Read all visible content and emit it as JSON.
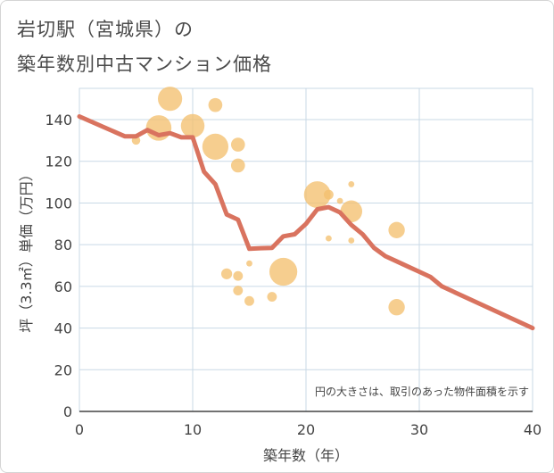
{
  "title": {
    "line1": "岩切駅（宮城県）の",
    "line2": "築年数別中古マンション価格"
  },
  "colors": {
    "line": "#d9735f",
    "bubble": "#f3c070",
    "grid": "#c9d9e6",
    "axis": "#444444"
  },
  "chart_data": {
    "type": "scatter",
    "xlabel": "築年数（年）",
    "ylabel": "坪（3.3㎡）単価（万円）",
    "xlim": [
      0,
      40
    ],
    "ylim": [
      0,
      155
    ],
    "xticks": [
      "0",
      "10",
      "20",
      "30",
      "40"
    ],
    "yticks": [
      "0",
      "20",
      "40",
      "60",
      "80",
      "100",
      "120",
      "140"
    ],
    "grid": true,
    "note": "円の大きさは、取引のあった物件面積を示す",
    "bubbles": [
      {
        "x": 5,
        "y": 130,
        "size": 1.4
      },
      {
        "x": 7,
        "y": 136,
        "size": 4.2
      },
      {
        "x": 8,
        "y": 150,
        "size": 4.0
      },
      {
        "x": 10,
        "y": 137,
        "size": 3.9
      },
      {
        "x": 12,
        "y": 147,
        "size": 2.3
      },
      {
        "x": 12,
        "y": 127,
        "size": 4.3
      },
      {
        "x": 14,
        "y": 128,
        "size": 2.3
      },
      {
        "x": 14,
        "y": 118,
        "size": 2.3
      },
      {
        "x": 13,
        "y": 66,
        "size": 1.8
      },
      {
        "x": 14,
        "y": 65,
        "size": 1.6
      },
      {
        "x": 14,
        "y": 58,
        "size": 1.6
      },
      {
        "x": 15,
        "y": 71,
        "size": 1.0
      },
      {
        "x": 15,
        "y": 53,
        "size": 1.6
      },
      {
        "x": 17,
        "y": 55,
        "size": 1.6
      },
      {
        "x": 18,
        "y": 67,
        "size": 4.6
      },
      {
        "x": 21,
        "y": 104,
        "size": 4.4
      },
      {
        "x": 22,
        "y": 104,
        "size": 1.6
      },
      {
        "x": 22,
        "y": 83,
        "size": 1.0
      },
      {
        "x": 23,
        "y": 101,
        "size": 1.0
      },
      {
        "x": 24,
        "y": 109,
        "size": 1.0
      },
      {
        "x": 24,
        "y": 96,
        "size": 3.6
      },
      {
        "x": 24,
        "y": 82,
        "size": 1.0
      },
      {
        "x": 28,
        "y": 87,
        "size": 2.7
      },
      {
        "x": 28,
        "y": 50,
        "size": 2.7
      }
    ],
    "line": {
      "x": [
        0,
        4,
        5,
        6,
        7,
        8,
        9,
        10,
        11,
        12,
        13,
        14,
        15,
        16,
        17,
        18,
        19,
        20,
        21,
        22,
        23,
        24,
        25,
        26,
        27,
        28,
        29,
        30,
        31,
        32,
        40
      ],
      "y": [
        141.5,
        132,
        132,
        135,
        132.5,
        133.5,
        131.5,
        131.5,
        115,
        109,
        94.5,
        92,
        78,
        78.3,
        78.5,
        84,
        85,
        90,
        97,
        98,
        95.5,
        89.5,
        85,
        78.5,
        74.5,
        72,
        69.5,
        67,
        64.5,
        60,
        40
      ]
    }
  }
}
